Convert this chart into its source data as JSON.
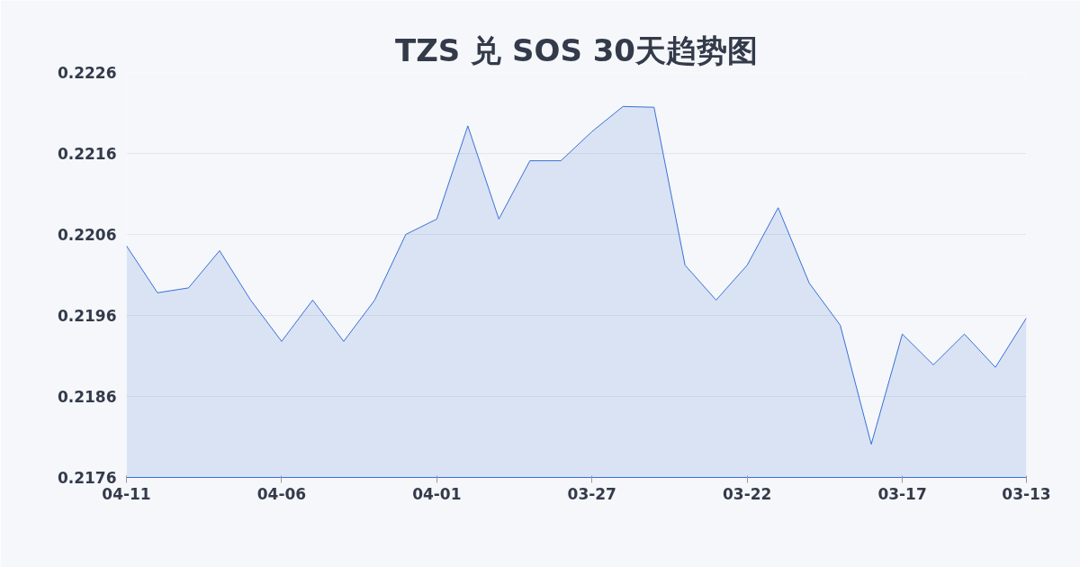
{
  "chart_data": {
    "type": "area",
    "title": "TZS 兑 SOS 30天趋势图",
    "categories": [
      "04-11",
      null,
      null,
      null,
      null,
      "04-06",
      null,
      null,
      null,
      null,
      "04-01",
      null,
      null,
      null,
      null,
      "03-27",
      null,
      null,
      null,
      null,
      "03-22",
      null,
      null,
      null,
      null,
      "03-17",
      null,
      null,
      null,
      "03-13"
    ],
    "series": [
      {
        "color": "#3a6fd8",
        "values": [
          0.22046,
          0.21988,
          0.21994,
          0.2204,
          0.21979,
          0.21928,
          0.21979,
          0.21928,
          0.21979,
          0.2206,
          0.22079,
          0.22194,
          0.22079,
          0.22151,
          0.22151,
          0.22187,
          0.22218,
          0.22217,
          0.22022,
          0.21979,
          0.22022,
          0.22093,
          0.22,
          0.21948,
          0.21801,
          0.21937,
          0.21899,
          0.21937,
          0.21896,
          0.21957
        ]
      }
    ],
    "ylim": [
      0.2176,
      0.2226
    ],
    "yticks": [
      {
        "value": 0.2176,
        "label": "0.2176"
      },
      {
        "value": 0.2186,
        "label": "0.2186"
      },
      {
        "value": 0.2196,
        "label": "0.2196"
      },
      {
        "value": 0.2206,
        "label": "0.2206"
      },
      {
        "value": 0.2216,
        "label": "0.2216"
      },
      {
        "value": 0.2226,
        "label": "0.2226"
      }
    ],
    "grid": "y"
  }
}
